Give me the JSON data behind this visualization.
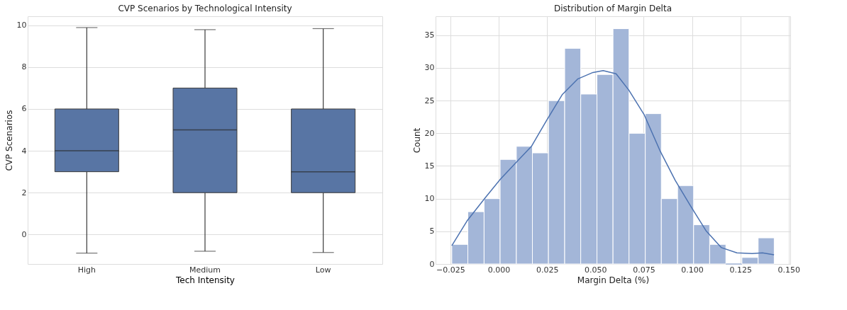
{
  "chart_data": [
    {
      "type": "box",
      "title": "CVP Scenarios by Technological Intensity",
      "xlabel": "Tech Intensity",
      "ylabel": "CVP Scenarios",
      "categories": [
        "High",
        "Medium",
        "Low"
      ],
      "color": "#5875a4",
      "boxes": [
        {
          "low": -0.89,
          "q1": 3,
          "median": 4,
          "q3": 6,
          "high": 9.89
        },
        {
          "low": -0.8,
          "q1": 2,
          "median": 5,
          "q3": 7,
          "high": 9.79
        },
        {
          "low": -0.86,
          "q1": 2,
          "median": 3,
          "q3": 6,
          "high": 9.84
        }
      ],
      "ylim": [
        -1.41,
        10.43
      ],
      "yticks": [
        0,
        2,
        4,
        6,
        8,
        10
      ],
      "grid": "y"
    },
    {
      "type": "histogram",
      "title": "Distribution of Margin Delta",
      "xlabel": "Margin Delta (%)",
      "ylabel": "Count",
      "color": "#a3b6d8",
      "bins": [
        -0.0243,
        -0.016,
        -0.0076,
        0.0007,
        0.0091,
        0.0174,
        0.0257,
        0.0341,
        0.0424,
        0.0508,
        0.0591,
        0.0674,
        0.0758,
        0.0841,
        0.0925,
        0.1008,
        0.1091,
        0.1175,
        0.1258,
        0.1342,
        0.1425
      ],
      "values": [
        3,
        8,
        10,
        16,
        18,
        17,
        25,
        33,
        26,
        29,
        36,
        20,
        23,
        10,
        12,
        6,
        3,
        0,
        1,
        4
      ],
      "series": [
        {
          "type": "line",
          "color": "#4c72b0",
          "x": [
            -0.0243,
            -0.0164,
            -0.0071,
            0.0009,
            0.0089,
            0.0169,
            0.0248,
            0.0328,
            0.0408,
            0.0487,
            0.054,
            0.0607,
            0.0673,
            0.0753,
            0.0833,
            0.0913,
            0.0992,
            0.1072,
            0.1152,
            0.1232,
            0.1311,
            0.1364,
            0.1424
          ],
          "values": [
            2.8,
            6.6,
            10.1,
            13.0,
            15.5,
            18.0,
            22.0,
            25.9,
            28.3,
            29.3,
            29.6,
            29.1,
            26.6,
            22.8,
            17.4,
            12.8,
            8.9,
            5.1,
            2.5,
            1.7,
            1.6,
            1.7,
            1.4
          ]
        }
      ],
      "xlim": [
        -0.0327,
        0.1508
      ],
      "xticks": [
        {
          "value": -0.025,
          "label": "−0.025"
        },
        {
          "value": 0.0,
          "label": "0.000"
        },
        {
          "value": 0.025,
          "label": "0.025"
        },
        {
          "value": 0.05,
          "label": "0.050"
        },
        {
          "value": 0.075,
          "label": "0.075"
        },
        {
          "value": 0.1,
          "label": "0.100"
        },
        {
          "value": 0.125,
          "label": "0.125"
        },
        {
          "value": 0.15,
          "label": "0.150"
        }
      ],
      "ylim": [
        0,
        37.9
      ],
      "yticks": [
        0,
        5,
        10,
        15,
        20,
        25,
        30,
        35
      ],
      "grid": true
    }
  ]
}
